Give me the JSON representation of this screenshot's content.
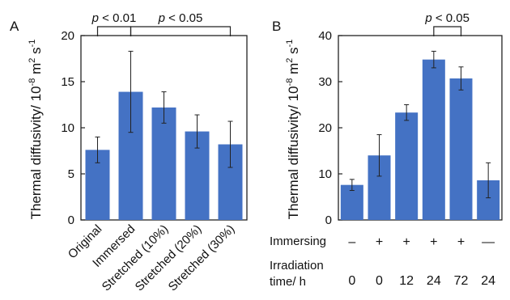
{
  "colors": {
    "bar": "#4472C4",
    "axis": "#222222",
    "error": "#222222"
  },
  "chart_data": [
    {
      "panel_label": "A",
      "type": "bar",
      "categories": [
        "Original",
        "Immersed",
        "Stretched (10%)",
        "Stretched (20%)",
        "Stretched (30%)"
      ],
      "values": [
        7.6,
        13.9,
        12.2,
        9.6,
        8.2
      ],
      "errors": [
        1.4,
        4.4,
        1.7,
        1.8,
        2.5
      ],
      "ylabel": "Thermal diffusivity/ 10",
      "ylabel_exp": "-8",
      "ylabel_unit": " m",
      "ylabel_unit_exp": "2",
      "ylabel_tail": " s",
      "ylabel_tail_exp": "-1",
      "ylim": [
        0,
        20
      ],
      "yticks": [
        "0",
        "5",
        "10",
        "15",
        "20"
      ],
      "legend": "none",
      "grid": false,
      "annotations": [
        {
          "from": 0,
          "to": 1,
          "text_p": "p",
          "text_rest": " < 0.01"
        },
        {
          "from": 1,
          "to": 4,
          "text_p": "p",
          "text_rest": " < 0.05"
        }
      ]
    },
    {
      "panel_label": "B",
      "type": "bar",
      "categories": [
        "",
        "",
        "",
        "",
        "",
        ""
      ],
      "values": [
        7.6,
        14.0,
        23.3,
        34.8,
        30.7,
        8.6
      ],
      "errors": [
        1.2,
        4.5,
        1.7,
        1.8,
        2.5,
        3.8
      ],
      "ylabel": "Thermal diffusivity/ 10",
      "ylabel_exp": "-8",
      "ylabel_unit": " m",
      "ylabel_unit_exp": "2",
      "ylabel_tail": " s",
      "ylabel_tail_exp": "-1",
      "ylim": [
        0,
        40
      ],
      "yticks": [
        "0",
        "10",
        "20",
        "30",
        "40"
      ],
      "legend": "none",
      "grid": false,
      "row_labels": {
        "immersing_title": "Immersing",
        "immersing": [
          "–",
          "+",
          "+",
          "+",
          "+",
          "—"
        ],
        "irradiation_title_1": "Irradiation",
        "irradiation_title_2": "time/ h",
        "irradiation": [
          "0",
          "0",
          "12",
          "24",
          "72",
          "24"
        ]
      },
      "annotations": [
        {
          "from": 3,
          "to": 4,
          "text_p": "p",
          "text_rest": " < 0.05"
        }
      ]
    }
  ]
}
